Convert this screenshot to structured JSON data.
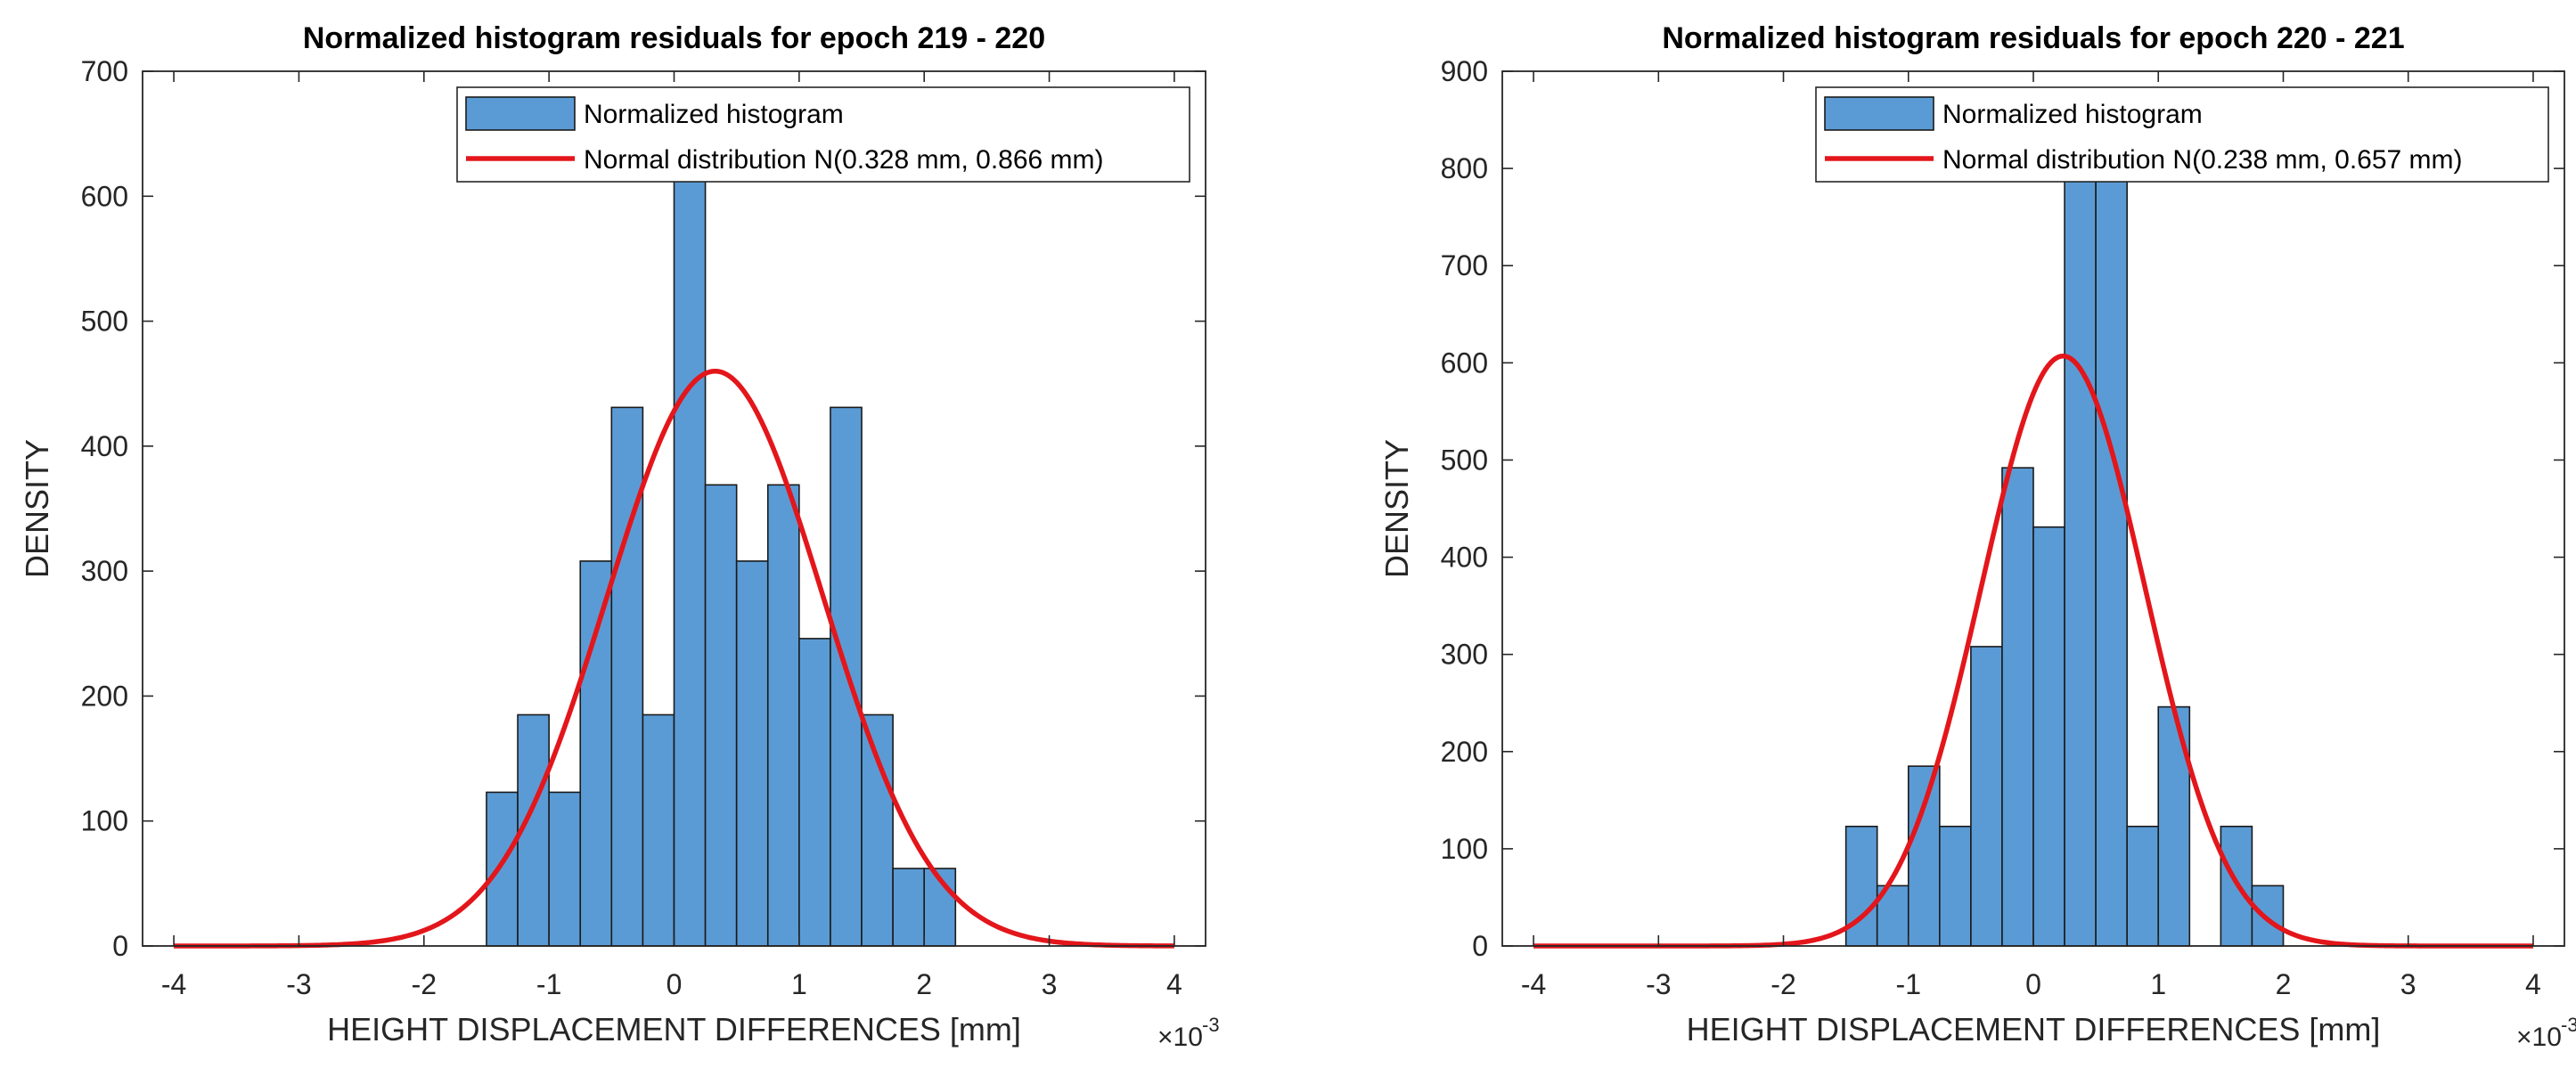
{
  "chart_data": [
    {
      "type": "bar",
      "title": "Normalized histogram residuals for epoch 219 - 220",
      "xlabel": "HEIGHT DISPLACEMENT DIFFERENCES [mm]",
      "ylabel": "DENSITY",
      "x_exponent": "×10",
      "x_exponent_power": "-3",
      "xlim": [
        -4.25,
        4.25
      ],
      "ylim": [
        0,
        700
      ],
      "xticks": [
        "-4",
        "-3",
        "-2",
        "-1",
        "0",
        "1",
        "2",
        "3",
        "4"
      ],
      "yticks": [
        "0",
        "100",
        "200",
        "300",
        "400",
        "500",
        "600",
        "700"
      ],
      "bin_edges": [
        -1.5,
        -1.25,
        -1.0,
        -0.75,
        -0.5,
        -0.25,
        0.0,
        0.25,
        0.5,
        0.75,
        1.0,
        1.25,
        1.5,
        1.75,
        2.0,
        2.25
      ],
      "values": [
        123,
        185,
        123,
        308,
        431,
        185,
        615,
        369,
        308,
        369,
        246,
        431,
        185,
        62,
        62
      ],
      "legend": {
        "position": "top-right",
        "entries": [
          "Normalized histogram",
          "Normal distribution N(0.328 mm, 0.866 mm)"
        ]
      },
      "normal_fit": {
        "mean": 0.328,
        "sd": 0.866,
        "peak": 460,
        "range": [
          -4,
          4
        ]
      },
      "colors": {
        "bar": "#5B9BD5",
        "edge": "#1a1a1a",
        "curve": "#e3161b"
      }
    },
    {
      "type": "bar",
      "title": "Normalized histogram residuals for epoch 220 - 221",
      "xlabel": "HEIGHT DISPLACEMENT DIFFERENCES [mm]",
      "ylabel": "DENSITY",
      "x_exponent": "×10",
      "x_exponent_power": "-3",
      "xlim": [
        -4.25,
        4.25
      ],
      "ylim": [
        0,
        900
      ],
      "xticks": [
        "-4",
        "-3",
        "-2",
        "-1",
        "0",
        "1",
        "2",
        "3",
        "4"
      ],
      "yticks": [
        "0",
        "100",
        "200",
        "300",
        "400",
        "500",
        "600",
        "700",
        "800",
        "900"
      ],
      "bin_edges": [
        -1.5,
        -1.25,
        -1.0,
        -0.75,
        -0.5,
        -0.25,
        0.0,
        0.25,
        0.5,
        0.75,
        1.0,
        1.25,
        1.5,
        1.75,
        2.0
      ],
      "values": [
        123,
        62,
        185,
        123,
        308,
        492,
        431,
        800,
        800,
        123,
        246,
        0,
        123,
        62
      ],
      "legend": {
        "position": "top-right",
        "entries": [
          "Normalized histogram",
          "Normal distribution N(0.238 mm, 0.657 mm)"
        ]
      },
      "normal_fit": {
        "mean": 0.238,
        "sd": 0.657,
        "peak": 607,
        "range": [
          -4,
          4
        ]
      },
      "colors": {
        "bar": "#5B9BD5",
        "edge": "#1a1a1a",
        "curve": "#e3161b"
      }
    }
  ]
}
